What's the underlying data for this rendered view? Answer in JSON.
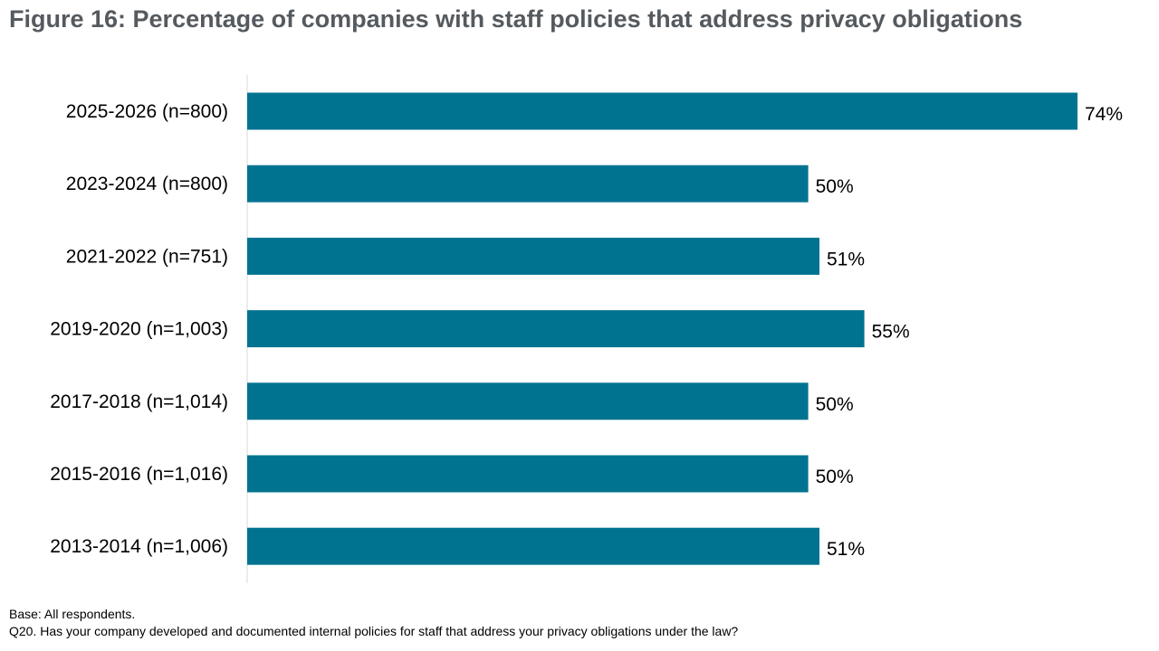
{
  "title": "Figure 16: Percentage of companies with staff policies that address privacy obligations",
  "footnotes": {
    "base": "Base: All respondents.",
    "question": "Q20. Has your company developed and documented internal policies for staff that address your privacy obligations under the law?"
  },
  "colors": {
    "bar": "#007391",
    "axis": "#d9d9d9",
    "title": "#555a5f"
  },
  "chart_data": {
    "type": "bar",
    "orientation": "horizontal",
    "categories": [
      "2025-2026 (n=800)",
      "2023-2024 (n=800)",
      "2021-2022 (n=751)",
      "2019-2020 (n=1,003)",
      "2017-2018 (n=1,014)",
      "2015-2016 (n=1,016)",
      "2013-2014 (n=1,006)"
    ],
    "values": [
      74,
      50,
      51,
      55,
      50,
      50,
      51
    ],
    "value_labels": [
      "74%",
      "50%",
      "51%",
      "55%",
      "50%",
      "50%",
      "51%"
    ],
    "xlim": [
      0,
      74
    ],
    "grid": false,
    "legend": "none"
  }
}
